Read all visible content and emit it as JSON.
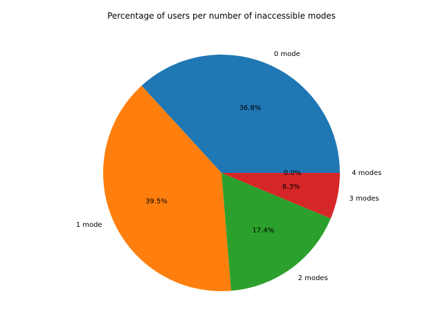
{
  "chart_data": {
    "type": "pie",
    "title": "Percentage of users per number of inaccessible modes",
    "categories": [
      "0 mode",
      "1 mode",
      "2 modes",
      "3 modes",
      "4 modes"
    ],
    "values": [
      36.8,
      39.5,
      17.4,
      6.3,
      0.0
    ],
    "percent_labels": [
      "36.8%",
      "39.5%",
      "17.4%",
      "6.3%",
      "0.0%"
    ],
    "colors": [
      "#1f77b4",
      "#ff7f0e",
      "#2ca02c",
      "#d62728",
      "#9467bd"
    ],
    "start_angle_deg": 0,
    "direction": "counterclockwise"
  }
}
